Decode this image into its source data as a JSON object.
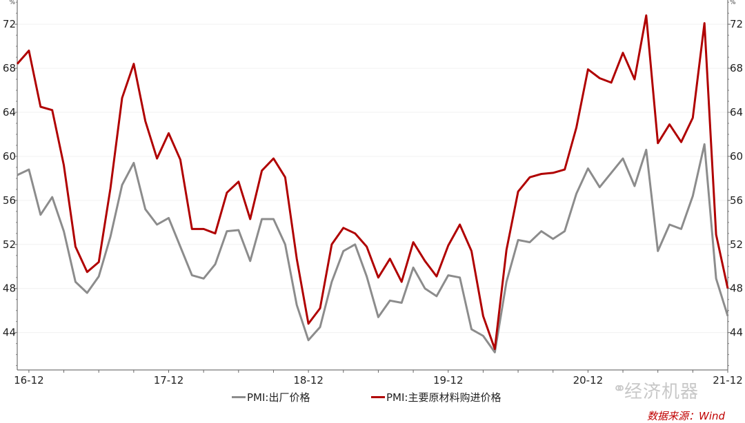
{
  "chart_data": {
    "type": "line",
    "title": "",
    "xlabel": "",
    "ylabel": "%",
    "ylim": [
      40.6,
      74.2
    ],
    "yticks": [
      44,
      48,
      52,
      56,
      60,
      64,
      68,
      72
    ],
    "ytick_labels": [
      "44",
      "48",
      "52",
      "56",
      "60",
      "64",
      "68",
      "72"
    ],
    "secondary_y_axis_mirrored": true,
    "grid": "horizontal",
    "legend_placement": "bottom",
    "x_tick_labels": [
      "16-12",
      "17-12",
      "18-12",
      "19-12",
      "20-12",
      "21-12"
    ],
    "categories": [
      "16-11",
      "16-12",
      "17-01",
      "17-02",
      "17-03",
      "17-04",
      "17-05",
      "17-06",
      "17-07",
      "17-08",
      "17-09",
      "17-10",
      "17-11",
      "17-12",
      "18-01",
      "18-02",
      "18-03",
      "18-04",
      "18-05",
      "18-06",
      "18-07",
      "18-08",
      "18-09",
      "18-10",
      "18-11",
      "18-12",
      "19-01",
      "19-02",
      "19-03",
      "19-04",
      "19-05",
      "19-06",
      "19-07",
      "19-08",
      "19-09",
      "19-10",
      "19-11",
      "19-12",
      "20-01",
      "20-02",
      "20-03",
      "20-04",
      "20-05",
      "20-06",
      "20-07",
      "20-08",
      "20-09",
      "20-10",
      "20-11",
      "20-12",
      "21-01",
      "21-02",
      "21-03",
      "21-04",
      "21-05",
      "21-06",
      "21-07",
      "21-08",
      "21-09",
      "21-10",
      "21-11",
      "21-12"
    ],
    "series": [
      {
        "name": "PMI:出厂价格",
        "color": "#8c8c8c",
        "values": [
          58.3,
          58.8,
          54.7,
          56.3,
          53.2,
          48.6,
          47.6,
          49.1,
          52.7,
          57.4,
          59.4,
          55.2,
          53.8,
          54.4,
          51.8,
          49.2,
          48.9,
          50.2,
          53.2,
          53.3,
          50.5,
          54.3,
          54.3,
          52.0,
          46.5,
          43.3,
          44.5,
          48.6,
          51.4,
          52.0,
          49.1,
          45.4,
          46.9,
          46.7,
          49.9,
          48.0,
          47.3,
          49.2,
          49.0,
          44.3,
          43.7,
          42.2,
          48.6,
          52.4,
          52.2,
          53.2,
          52.5,
          53.2,
          56.6,
          58.9,
          57.2,
          58.5,
          59.8,
          57.3,
          60.6,
          51.4,
          53.8,
          53.4,
          56.4,
          61.1,
          48.9,
          45.5
        ]
      },
      {
        "name": "PMI:主要原材料购进价格",
        "color": "#b00000",
        "values": [
          68.4,
          69.6,
          64.5,
          64.2,
          59.2,
          51.8,
          49.5,
          50.4,
          57.1,
          65.3,
          68.4,
          63.2,
          59.8,
          62.1,
          59.7,
          53.4,
          53.4,
          53.0,
          56.7,
          57.7,
          54.3,
          58.7,
          59.8,
          58.1,
          50.7,
          44.8,
          46.2,
          52.0,
          53.5,
          53.0,
          51.8,
          49.0,
          50.7,
          48.6,
          52.2,
          50.5,
          49.1,
          51.9,
          53.8,
          51.4,
          45.5,
          42.5,
          51.5,
          56.8,
          58.1,
          58.4,
          58.5,
          58.8,
          62.6,
          67.9,
          67.1,
          66.7,
          69.4,
          67.0,
          72.8,
          61.2,
          62.9,
          61.3,
          63.5,
          72.1,
          52.9,
          48.0
        ]
      }
    ]
  },
  "watermark": "经济机器",
  "source": "数据来源：Wind"
}
